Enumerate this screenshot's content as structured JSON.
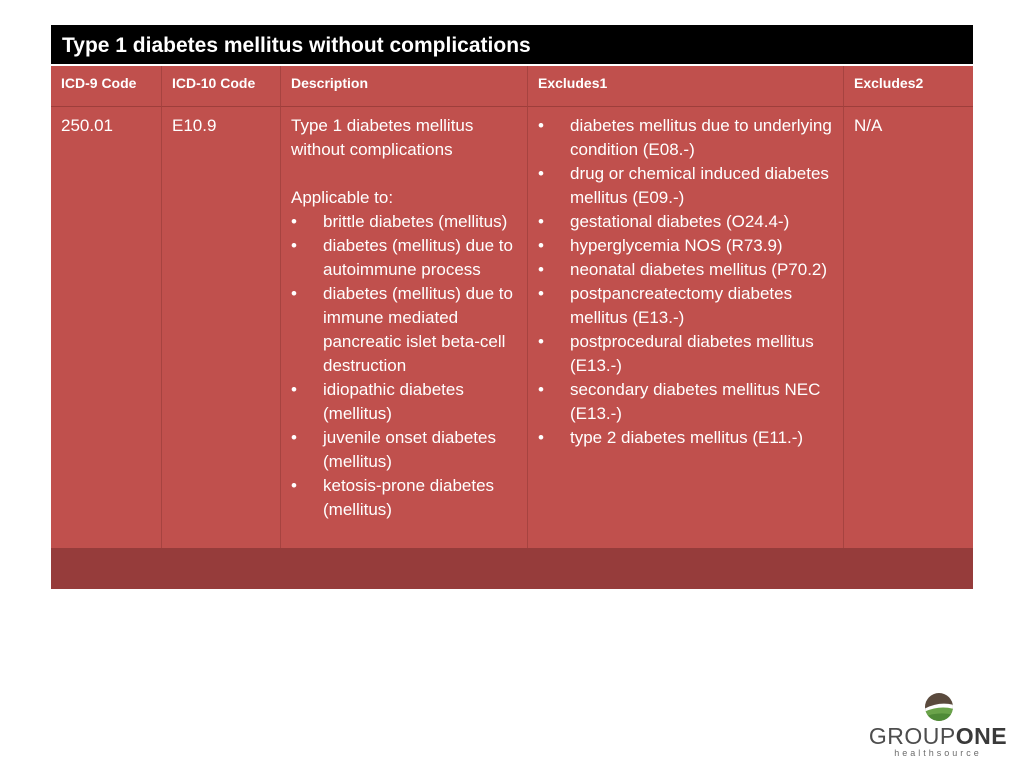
{
  "title": "Type 1 diabetes mellitus without complications",
  "headers": [
    "ICD-9 Code",
    "ICD-10 Code",
    "Description",
    "Excludes1",
    "Excludes2"
  ],
  "row": {
    "icd9": "250.01",
    "icd10": "E10.9",
    "description_main": "Type 1 diabetes mellitus without complications",
    "applicable_label": "Applicable to:",
    "applicable_items": [
      "brittle diabetes (mellitus)",
      "diabetes (mellitus) due to autoimmune process",
      "diabetes (mellitus) due to immune mediated pancreatic islet beta-cell destruction",
      "idiopathic diabetes (mellitus)",
      "juvenile onset diabetes (mellitus)",
      "ketosis-prone diabetes (mellitus)"
    ],
    "excludes1": [
      "diabetes mellitus due to underlying condition (E08.-)",
      "drug or chemical induced diabetes mellitus (E09.-)",
      "gestational diabetes (O24.4-)",
      "hyperglycemia NOS (R73.9)",
      "neonatal diabetes mellitus (P70.2)",
      "postpancreatectomy diabetes mellitus (E13.-)",
      "postprocedural diabetes mellitus (E13.-)",
      "secondary diabetes mellitus NEC (E13.-)",
      "type 2 diabetes mellitus (E11.-)"
    ],
    "excludes2": "N/A"
  },
  "logo": {
    "group": "GROUP",
    "one": "ONE",
    "sub": "healthsource"
  },
  "colors": {
    "title_bg": "#000000",
    "cell_bg": "#c0504d",
    "footer_bg": "#963c3b"
  }
}
